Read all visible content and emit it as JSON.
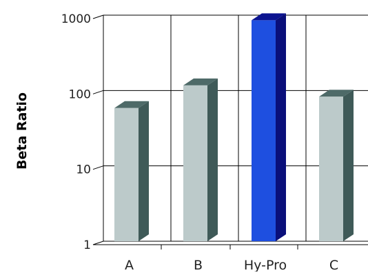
{
  "chart_data": {
    "type": "bar",
    "title": "",
    "xlabel": "",
    "ylabel": "Beta Ratio",
    "yscale": "log",
    "ylim": [
      1,
      1000
    ],
    "yticks": [
      1,
      10,
      100,
      1000
    ],
    "ytick_labels": [
      "1",
      "10",
      "100",
      "1000"
    ],
    "grid": true,
    "legend": "none",
    "categories": [
      "A",
      "B",
      "Hy-Pro",
      "C"
    ],
    "values": [
      65,
      130,
      950,
      92
    ],
    "colors": {
      "default_bar_front": "#bccaca",
      "default_bar_side": "#3f5a58",
      "default_bar_top": "#4e6a68",
      "highlight_bar_front": "#1e4fe0",
      "highlight_bar_side": "#0a0f7a",
      "highlight_bar_top": "#0c1490",
      "highlight_category": "Hy-Pro",
      "grid": "#000000",
      "text": "#222222"
    }
  }
}
